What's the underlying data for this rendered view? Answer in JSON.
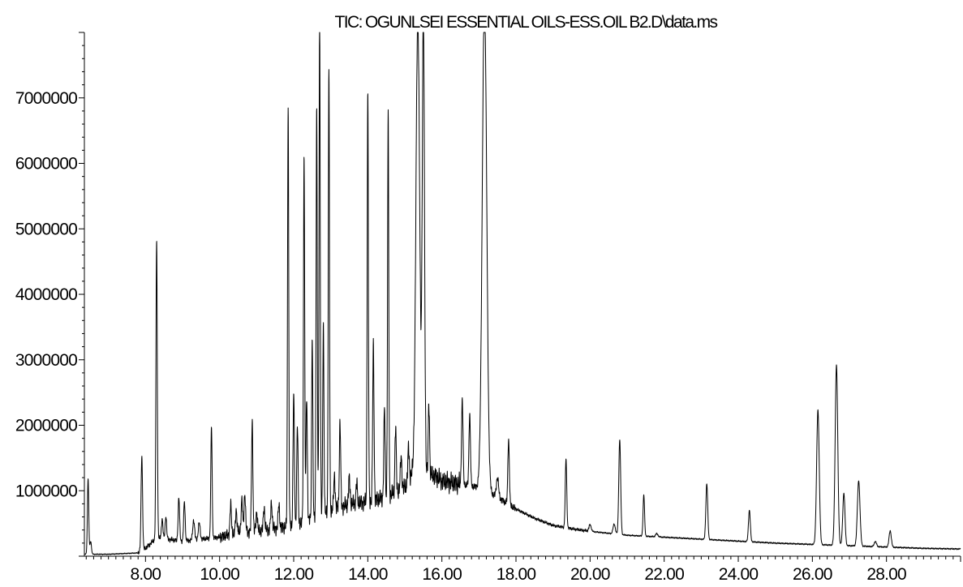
{
  "chart_data": {
    "type": "line",
    "title": "TIC: OGUNLSEI ESSENTIAL OILS-ESS.OIL B2.D\\data.ms",
    "xlabel": "",
    "ylabel": "",
    "xlim": [
      6.35,
      30.0
    ],
    "ylim": [
      0,
      8000000
    ],
    "x_ticks": [
      8,
      10,
      12,
      14,
      16,
      18,
      20,
      22,
      24,
      26,
      28
    ],
    "x_tick_labels": [
      "8.00",
      "10.00",
      "12.00",
      "14.00",
      "16.00",
      "18.00",
      "20.00",
      "22.00",
      "24.00",
      "26.00",
      "28.00"
    ],
    "y_ticks": [
      1000000,
      2000000,
      3000000,
      4000000,
      5000000,
      6000000,
      7000000
    ],
    "y_tick_labels": [
      "1000000",
      "2000000",
      "3000000",
      "4000000",
      "5000000",
      "6000000",
      "7000000"
    ],
    "grid": false,
    "series": [
      {
        "baseline": [
          [
            6.35,
            30000
          ],
          [
            7.0,
            30000
          ],
          [
            7.8,
            50000
          ],
          [
            8.0,
            120000
          ],
          [
            8.3,
            280000
          ],
          [
            9.0,
            230000
          ],
          [
            10.0,
            290000
          ],
          [
            10.5,
            360000
          ],
          [
            11.0,
            380000
          ],
          [
            11.5,
            420000
          ],
          [
            12.0,
            470000
          ],
          [
            12.5,
            560000
          ],
          [
            13.0,
            700000
          ],
          [
            13.5,
            790000
          ],
          [
            14.0,
            830000
          ],
          [
            14.5,
            900000
          ],
          [
            15.0,
            1050000
          ],
          [
            15.2,
            1250000
          ],
          [
            15.8,
            1230000
          ],
          [
            16.0,
            1150000
          ],
          [
            16.5,
            1100000
          ],
          [
            17.0,
            1050000
          ],
          [
            17.5,
            900000
          ],
          [
            18.0,
            720000
          ],
          [
            18.5,
            580000
          ],
          [
            19.0,
            470000
          ],
          [
            19.5,
            420000
          ],
          [
            20.0,
            380000
          ],
          [
            21.0,
            320000
          ],
          [
            22.0,
            290000
          ],
          [
            23.0,
            260000
          ],
          [
            24.0,
            230000
          ],
          [
            25.0,
            200000
          ],
          [
            26.0,
            180000
          ],
          [
            27.0,
            160000
          ],
          [
            28.0,
            140000
          ],
          [
            29.0,
            120000
          ],
          [
            30.0,
            110000
          ]
        ],
        "peaks": [
          [
            6.45,
            1150000,
            0.018
          ],
          [
            6.52,
            200000,
            0.02
          ],
          [
            7.9,
            1450000,
            0.02
          ],
          [
            8.3,
            4550000,
            0.018
          ],
          [
            8.45,
            300000,
            0.02
          ],
          [
            8.55,
            350000,
            0.02
          ],
          [
            8.9,
            650000,
            0.02
          ],
          [
            9.05,
            600000,
            0.02
          ],
          [
            9.3,
            300000,
            0.025
          ],
          [
            9.45,
            250000,
            0.025
          ],
          [
            9.78,
            1700000,
            0.018
          ],
          [
            10.3,
            450000,
            0.02
          ],
          [
            10.45,
            350000,
            0.02
          ],
          [
            10.6,
            500000,
            0.02
          ],
          [
            10.68,
            600000,
            0.02
          ],
          [
            10.88,
            1700000,
            0.018
          ],
          [
            11.0,
            300000,
            0.02
          ],
          [
            11.2,
            350000,
            0.02
          ],
          [
            11.4,
            400000,
            0.02
          ],
          [
            11.6,
            350000,
            0.02
          ],
          [
            11.85,
            6450000,
            0.016
          ],
          [
            12.0,
            2000000,
            0.018
          ],
          [
            12.1,
            1500000,
            0.018
          ],
          [
            12.28,
            5650000,
            0.016
          ],
          [
            12.35,
            1900000,
            0.018
          ],
          [
            12.5,
            2800000,
            0.016
          ],
          [
            12.62,
            6200000,
            0.016
          ],
          [
            12.7,
            7700000,
            0.016
          ],
          [
            12.8,
            2900000,
            0.016
          ],
          [
            12.95,
            6700000,
            0.016
          ],
          [
            13.1,
            500000,
            0.02
          ],
          [
            13.25,
            1300000,
            0.018
          ],
          [
            13.5,
            400000,
            0.02
          ],
          [
            13.7,
            300000,
            0.02
          ],
          [
            14.0,
            6250000,
            0.016
          ],
          [
            14.15,
            2350000,
            0.018
          ],
          [
            14.45,
            1350000,
            0.018
          ],
          [
            14.55,
            5800000,
            0.016
          ],
          [
            14.75,
            1000000,
            0.018
          ],
          [
            14.9,
            500000,
            0.02
          ],
          [
            15.1,
            500000,
            0.02
          ],
          [
            15.35,
            7000000,
            0.05
          ],
          [
            15.5,
            7000000,
            0.03
          ],
          [
            15.65,
            1100000,
            0.018
          ],
          [
            16.55,
            1300000,
            0.02
          ],
          [
            16.75,
            1100000,
            0.02
          ],
          [
            17.15,
            7500000,
            0.06
          ],
          [
            17.5,
            300000,
            0.03
          ],
          [
            17.8,
            1000000,
            0.02
          ],
          [
            19.35,
            1050000,
            0.02
          ],
          [
            20.0,
            100000,
            0.03
          ],
          [
            20.65,
            150000,
            0.03
          ],
          [
            20.8,
            1450000,
            0.025
          ],
          [
            21.45,
            630000,
            0.02
          ],
          [
            21.8,
            50000,
            0.03
          ],
          [
            23.15,
            850000,
            0.025
          ],
          [
            24.3,
            480000,
            0.025
          ],
          [
            26.15,
            2050000,
            0.035
          ],
          [
            26.65,
            2750000,
            0.035
          ],
          [
            26.85,
            800000,
            0.03
          ],
          [
            27.25,
            1000000,
            0.035
          ],
          [
            27.7,
            80000,
            0.03
          ],
          [
            28.1,
            250000,
            0.03
          ]
        ]
      }
    ]
  }
}
